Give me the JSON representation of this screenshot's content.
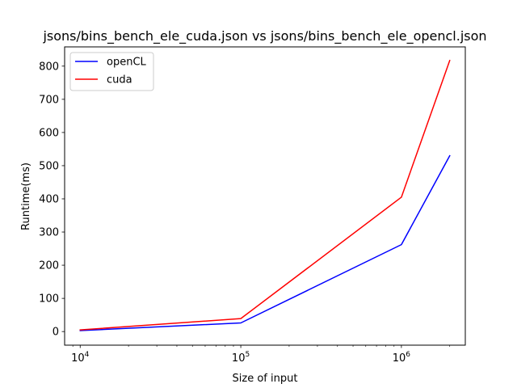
{
  "chart_data": {
    "type": "line",
    "title": "jsons/bins_bench_ele_cuda.json vs jsons/bins_bench_ele_opencl.json",
    "xlabel": "Size of input",
    "ylabel": "Runtime(ms)",
    "xscale": "log",
    "xlim": [
      8000,
      2500000
    ],
    "ylim": [
      -41,
      858
    ],
    "x": [
      10000,
      100000,
      1000000,
      2000000
    ],
    "x_ticks": [
      {
        "value": 10000,
        "base": "10",
        "exp": "4"
      },
      {
        "value": 100000,
        "base": "10",
        "exp": "5"
      },
      {
        "value": 1000000,
        "base": "10",
        "exp": "6"
      }
    ],
    "y_ticks": [
      0,
      100,
      200,
      300,
      400,
      500,
      600,
      700,
      800
    ],
    "grid": false,
    "legend_position": "top-left",
    "series": [
      {
        "name": "openCL",
        "color": "#0000ff",
        "values": [
          3,
          26,
          262,
          530
        ]
      },
      {
        "name": "cuda",
        "color": "#ff0000",
        "values": [
          5,
          39,
          405,
          817
        ]
      }
    ]
  }
}
